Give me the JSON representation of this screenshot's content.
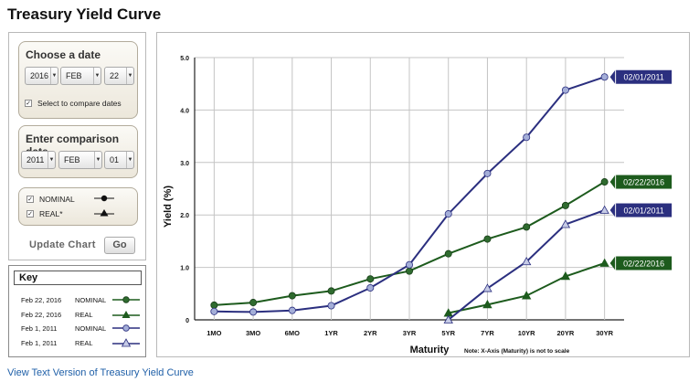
{
  "page": {
    "title": "Treasury Yield Curve"
  },
  "date_picker": {
    "title": "Choose a date",
    "year": "2016",
    "month": "FEB",
    "day": "22",
    "compare_checked": true,
    "compare_label": "Select to compare dates"
  },
  "comparison_picker": {
    "title": "Enter comparison date",
    "year": "2011",
    "month": "FEB",
    "day": "01"
  },
  "type_filter": {
    "items": [
      {
        "label": "NOMINAL",
        "checked": true,
        "marker": "circle"
      },
      {
        "label": "REAL*",
        "checked": true,
        "marker": "triangle"
      }
    ]
  },
  "update": {
    "label": "Update Chart",
    "button": "Go"
  },
  "key": {
    "title": "Key",
    "rows": [
      {
        "date": "Feb 22, 2016",
        "type": "NOMINAL",
        "marker": "circle",
        "color": "#1d5b1d"
      },
      {
        "date": "Feb 22, 2016",
        "type": "REAL",
        "marker": "triangle",
        "color": "#1d5b1d"
      },
      {
        "date": "Feb 1, 2011",
        "type": "NOMINAL",
        "marker": "circle",
        "color": "#2b2f7f"
      },
      {
        "date": "Feb 1, 2011",
        "type": "REAL",
        "marker": "triangle",
        "color": "#2b2f7f"
      }
    ]
  },
  "link": {
    "text": "View Text Version of Treasury Yield Curve"
  },
  "chart_data": {
    "type": "line",
    "categories": [
      "1MO",
      "3MO",
      "6MO",
      "1YR",
      "2YR",
      "3YR",
      "5YR",
      "7YR",
      "10YR",
      "20YR",
      "30YR"
    ],
    "xlabel": "Maturity",
    "ylabel": "Yield (%)",
    "note": "Note: X-Axis (Maturity) is not to scale",
    "ylim": [
      0,
      5
    ],
    "yticks": [
      "0",
      "1.0",
      "2.0",
      "3.0",
      "4.0",
      "5.0"
    ],
    "grid": true,
    "series": [
      {
        "name": "Feb 22, 2016 NOMINAL",
        "type": "NOMINAL",
        "color": "#1d5b1d",
        "marker": "circle",
        "tag": "02/22/2016",
        "values": [
          0.28,
          0.33,
          0.46,
          0.55,
          0.78,
          0.93,
          1.26,
          1.54,
          1.77,
          2.18,
          2.63
        ]
      },
      {
        "name": "Feb 22, 2016 REAL",
        "type": "REAL",
        "color": "#1d5b1d",
        "marker": "triangle",
        "tag": "02/22/2016",
        "values": [
          null,
          null,
          null,
          null,
          null,
          null,
          0.13,
          0.29,
          0.46,
          0.83,
          1.08
        ]
      },
      {
        "name": "Feb 1, 2011 NOMINAL",
        "type": "NOMINAL",
        "color": "#2b2f7f",
        "marker": "circle",
        "tag": "02/01/2011",
        "values": [
          0.16,
          0.15,
          0.18,
          0.27,
          0.61,
          1.05,
          2.02,
          2.79,
          3.48,
          4.38,
          4.63
        ]
      },
      {
        "name": "Feb 1, 2011 REAL",
        "type": "REAL",
        "color": "#2b2f7f",
        "marker": "triangle",
        "tag": "02/01/2011",
        "values": [
          null,
          null,
          null,
          null,
          null,
          null,
          0.0,
          0.6,
          1.11,
          1.82,
          2.09
        ]
      }
    ]
  }
}
